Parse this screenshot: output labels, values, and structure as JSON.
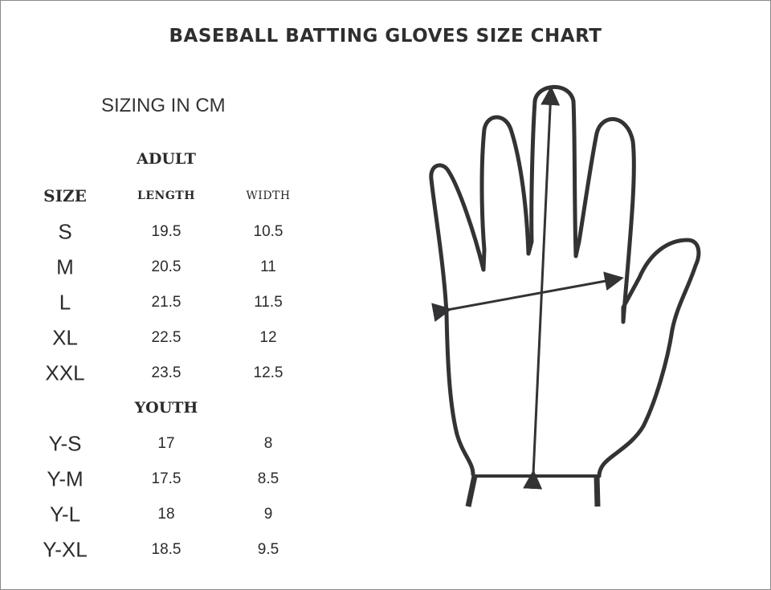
{
  "title": "BASEBALL BATTING GLOVES SIZE CHART",
  "subtitle": "SIZING IN CM",
  "columns": {
    "size": "SIZE",
    "length": "LENGTH",
    "width": "WIDTH"
  },
  "adult": {
    "label": "ADULT",
    "rows": [
      {
        "size": "S",
        "length": "19.5",
        "width": "10.5"
      },
      {
        "size": "M",
        "length": "20.5",
        "width": "11"
      },
      {
        "size": "L",
        "length": "21.5",
        "width": "11.5"
      },
      {
        "size": "XL",
        "length": "22.5",
        "width": "12"
      },
      {
        "size": "XXL",
        "length": "23.5",
        "width": "12.5"
      }
    ]
  },
  "youth": {
    "label": "YOUTH",
    "rows": [
      {
        "size": "Y-S",
        "length": "17",
        "width": "8"
      },
      {
        "size": "Y-M",
        "length": "17.5",
        "width": "8.5"
      },
      {
        "size": "Y-L",
        "length": "18",
        "width": "9"
      },
      {
        "size": "Y-XL",
        "length": "18.5",
        "width": "9.5"
      }
    ]
  },
  "illustration": "hand-outline-with-length-and-width-arrows",
  "colors": {
    "ink": "#333335",
    "border": "#8a8a8a"
  }
}
